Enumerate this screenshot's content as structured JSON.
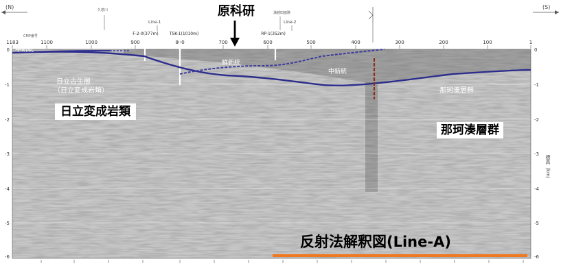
{
  "header": {
    "north_label": "(N)",
    "south_label": "(S)",
    "jaea_label": "原科研",
    "river_label": "久慈川",
    "other_label": "満越田面路",
    "line1_label": "Line-1",
    "line2_label": "Line-2"
  },
  "axis": {
    "cmp_caption": "CMP番号",
    "cmp_ticks": [
      "1183",
      "1100",
      "1000",
      "900",
      "800",
      "700",
      "600",
      "500",
      "400",
      "300",
      "200",
      "100",
      "1"
    ],
    "depth_ticks": [
      "0",
      "-1",
      "-2",
      "-3",
      "-4",
      "-5",
      "-6"
    ],
    "depth_caption": "標高（km）"
  },
  "wells": [
    {
      "label": "F-2-0(377m)"
    },
    {
      "label": "TSK-1(1010m)"
    },
    {
      "label": "RP-1(352m)"
    }
  ],
  "units": {
    "chushinto_left": "中新統",
    "senshinto": "鮮新統",
    "chushinto_mid": "中新統",
    "hitachi_old_1": "日立古生層",
    "hitachi_old_2": "（日立変成岩類）",
    "nakaminato_small": "那珂湊層群"
  },
  "labels": {
    "hitachi_box": "日立変成岩類",
    "nakaminato_box": "那珂湊層群",
    "title": "反射法解釈図(Line-A)"
  },
  "colors": {
    "interpretation_line": "#2d2d8c",
    "fault_line": "#8b2e1a",
    "title_underline": "#f07820"
  }
}
